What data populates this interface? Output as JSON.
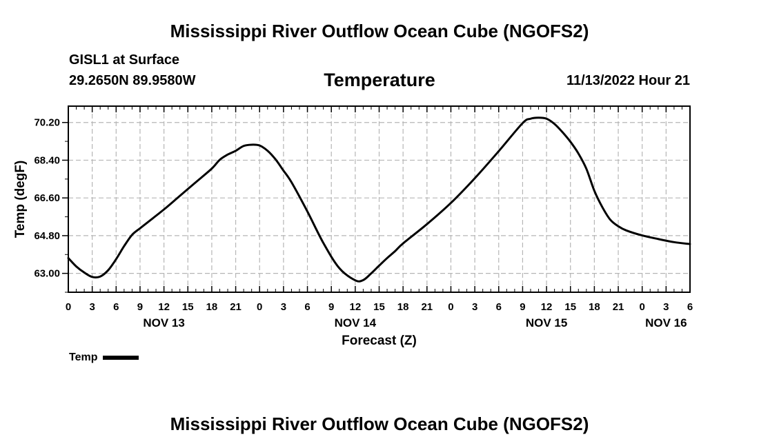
{
  "header": {
    "title": "Mississippi River Outflow Ocean Cube (NGOFS2)",
    "station": "GISL1 at Surface",
    "coords": "29.2650N  89.9580W",
    "plot_title": "Temperature",
    "timestamp": "11/13/2022 Hour 21"
  },
  "footer": {
    "title": "Mississippi River Outflow Ocean Cube (NGOFS2)"
  },
  "legend": {
    "label": "Temp"
  },
  "chart_data": {
    "type": "line",
    "title": "Temperature",
    "xlabel": "Forecast (Z)",
    "ylabel": "Temp (degF)",
    "x_unit": "hours since NOV 13 00Z",
    "xlim": [
      0,
      78
    ],
    "ylim": [
      62.1,
      70.98
    ],
    "grid": true,
    "xticks": [
      {
        "x": 0,
        "label": "0"
      },
      {
        "x": 3,
        "label": "3"
      },
      {
        "x": 6,
        "label": "6"
      },
      {
        "x": 9,
        "label": "9"
      },
      {
        "x": 12,
        "label": "12"
      },
      {
        "x": 15,
        "label": "15"
      },
      {
        "x": 18,
        "label": "18"
      },
      {
        "x": 21,
        "label": "21"
      },
      {
        "x": 24,
        "label": "0"
      },
      {
        "x": 27,
        "label": "3"
      },
      {
        "x": 30,
        "label": "6"
      },
      {
        "x": 33,
        "label": "9"
      },
      {
        "x": 36,
        "label": "12"
      },
      {
        "x": 39,
        "label": "15"
      },
      {
        "x": 42,
        "label": "18"
      },
      {
        "x": 45,
        "label": "21"
      },
      {
        "x": 48,
        "label": "0"
      },
      {
        "x": 51,
        "label": "3"
      },
      {
        "x": 54,
        "label": "6"
      },
      {
        "x": 57,
        "label": "9"
      },
      {
        "x": 60,
        "label": "12"
      },
      {
        "x": 63,
        "label": "15"
      },
      {
        "x": 66,
        "label": "18"
      },
      {
        "x": 69,
        "label": "21"
      },
      {
        "x": 72,
        "label": "0"
      },
      {
        "x": 75,
        "label": "3"
      },
      {
        "x": 78,
        "label": "6"
      }
    ],
    "day_labels": [
      {
        "x": 12,
        "label": "NOV 13"
      },
      {
        "x": 36,
        "label": "NOV 14"
      },
      {
        "x": 60,
        "label": "NOV 15"
      },
      {
        "x": 75,
        "label": "NOV 16"
      }
    ],
    "yticks": [
      63.0,
      64.8,
      66.6,
      68.4,
      70.2
    ],
    "ytick_labels": [
      "63.00",
      "64.80",
      "66.60",
      "68.40",
      "70.20"
    ],
    "series": [
      {
        "name": "Temp",
        "color": "#000000",
        "x": [
          0,
          1,
          2,
          3,
          4,
          5,
          6,
          7,
          8,
          9,
          10,
          12,
          14,
          16,
          18,
          19,
          20,
          21,
          22,
          23,
          24,
          25,
          26,
          27,
          28,
          30,
          32,
          34,
          36,
          37,
          38,
          39,
          40,
          41,
          42,
          45,
          48,
          51,
          54,
          57,
          58,
          59,
          60,
          61,
          62,
          63,
          64,
          65,
          66,
          67,
          68,
          69,
          70,
          72,
          74,
          76,
          78
        ],
        "y": [
          63.73,
          63.33,
          63.04,
          62.83,
          62.85,
          63.15,
          63.68,
          64.3,
          64.84,
          65.15,
          65.45,
          66.05,
          66.7,
          67.35,
          68.0,
          68.42,
          68.67,
          68.85,
          69.08,
          69.14,
          69.1,
          68.85,
          68.44,
          67.9,
          67.35,
          65.95,
          64.45,
          63.25,
          62.67,
          62.68,
          63.0,
          63.37,
          63.73,
          64.06,
          64.43,
          65.35,
          66.36,
          67.54,
          68.83,
          70.17,
          70.38,
          70.43,
          70.38,
          70.13,
          69.74,
          69.28,
          68.72,
          67.99,
          66.94,
          66.16,
          65.56,
          65.25,
          65.05,
          64.81,
          64.64,
          64.49,
          64.4
        ]
      }
    ]
  }
}
